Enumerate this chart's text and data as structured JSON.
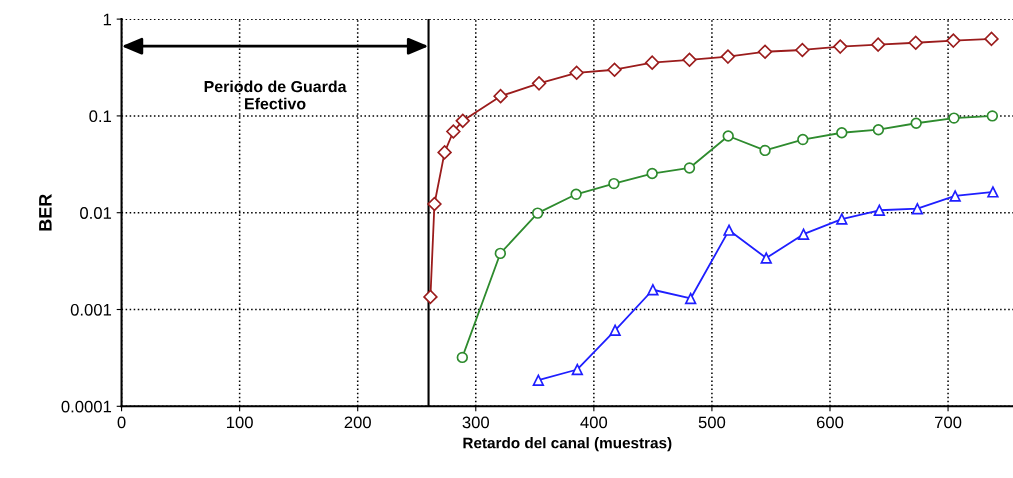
{
  "chart_data": {
    "type": "line",
    "xlabel": "Retardo del canal (muestras)",
    "ylabel": "BER",
    "log": "y",
    "xlim": [
      0,
      755
    ],
    "xticks": [
      0,
      100,
      200,
      300,
      400,
      500,
      600,
      700
    ],
    "ylim": [
      0.0001,
      1
    ],
    "yticks": [
      0.0001,
      0.001,
      0.01,
      0.1,
      1
    ],
    "grid": true,
    "legend": false,
    "line_style": "solid",
    "series": [
      {
        "color": "#9b1c1c",
        "marker": "diamond",
        "x": [
          261.6,
          265,
          273.6,
          281,
          289,
          321,
          353.6,
          385.4,
          417.5,
          449.4,
          481,
          513.6,
          545,
          576.6,
          608.7,
          640.8,
          672.6,
          704.5,
          736.8
        ],
        "values": [
          0.00135,
          0.0123,
          0.042,
          0.069,
          0.089,
          0.16,
          0.217,
          0.279,
          0.3,
          0.355,
          0.38,
          0.41,
          0.46,
          0.48,
          0.52,
          0.545,
          0.57,
          0.6,
          0.625
        ]
      },
      {
        "color": "#2e8b2e",
        "marker": "circle",
        "x": [
          288.6,
          320.8,
          352.4,
          385,
          417,
          449.4,
          481,
          513.8,
          545,
          577,
          610,
          641,
          673,
          705,
          737.5
        ],
        "values": [
          0.00032,
          0.0038,
          0.0099,
          0.0155,
          0.02,
          0.0254,
          0.029,
          0.062,
          0.044,
          0.057,
          0.067,
          0.072,
          0.084,
          0.095,
          0.1
        ]
      },
      {
        "color": "#1f1fff",
        "marker": "triangle",
        "x": [
          353,
          386,
          418,
          450,
          482,
          514.5,
          546,
          577.6,
          610,
          641.8,
          674,
          706,
          738
        ],
        "values": [
          0.000186,
          0.00024,
          0.00061,
          0.0016,
          0.0013,
          0.0066,
          0.0034,
          0.006,
          0.0086,
          0.0106,
          0.011,
          0.0149,
          0.0164
        ]
      }
    ],
    "ref_lines": [
      {
        "axis": "x",
        "value": 260,
        "color": "#000000",
        "line_style": "solid"
      }
    ],
    "annotations": [
      "Periodo de Guarda\nEfectivo"
    ]
  }
}
